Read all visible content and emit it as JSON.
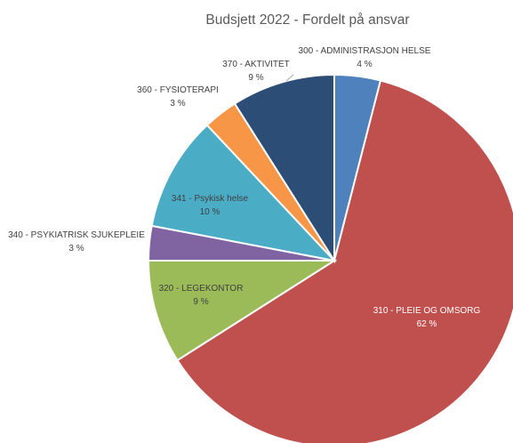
{
  "chart_data": {
    "type": "pie",
    "title": "Budsjett 2022 - Fordelt på ansvar",
    "slices": [
      {
        "category": "300 - ADMINISTRASJON HELSE",
        "value": 4,
        "label": "4 %",
        "color": "#4f81bd"
      },
      {
        "category": "310 - PLEIE OG OMSORG",
        "value": 62,
        "label": "62 %",
        "color": "#c0504d"
      },
      {
        "category": "320 - LEGEKONTOR",
        "value": 9,
        "label": "9 %",
        "color": "#9bbb59"
      },
      {
        "category": "340 - PSYKIATRISK SJUKEPLEIE",
        "value": 3,
        "label": "3 %",
        "color": "#8064a2"
      },
      {
        "category": "341 - Psykisk helse",
        "value": 10,
        "label": "10 %",
        "color": "#4bacc6"
      },
      {
        "category": "360 - FYSIOTERAPI",
        "value": 3,
        "label": "3 %",
        "color": "#f79646"
      },
      {
        "category": "370 - AKTIVITET",
        "value": 9,
        "label": "9 %",
        "color": "#2c4d75"
      }
    ],
    "legend": "none",
    "data_labels": "category and percent"
  }
}
